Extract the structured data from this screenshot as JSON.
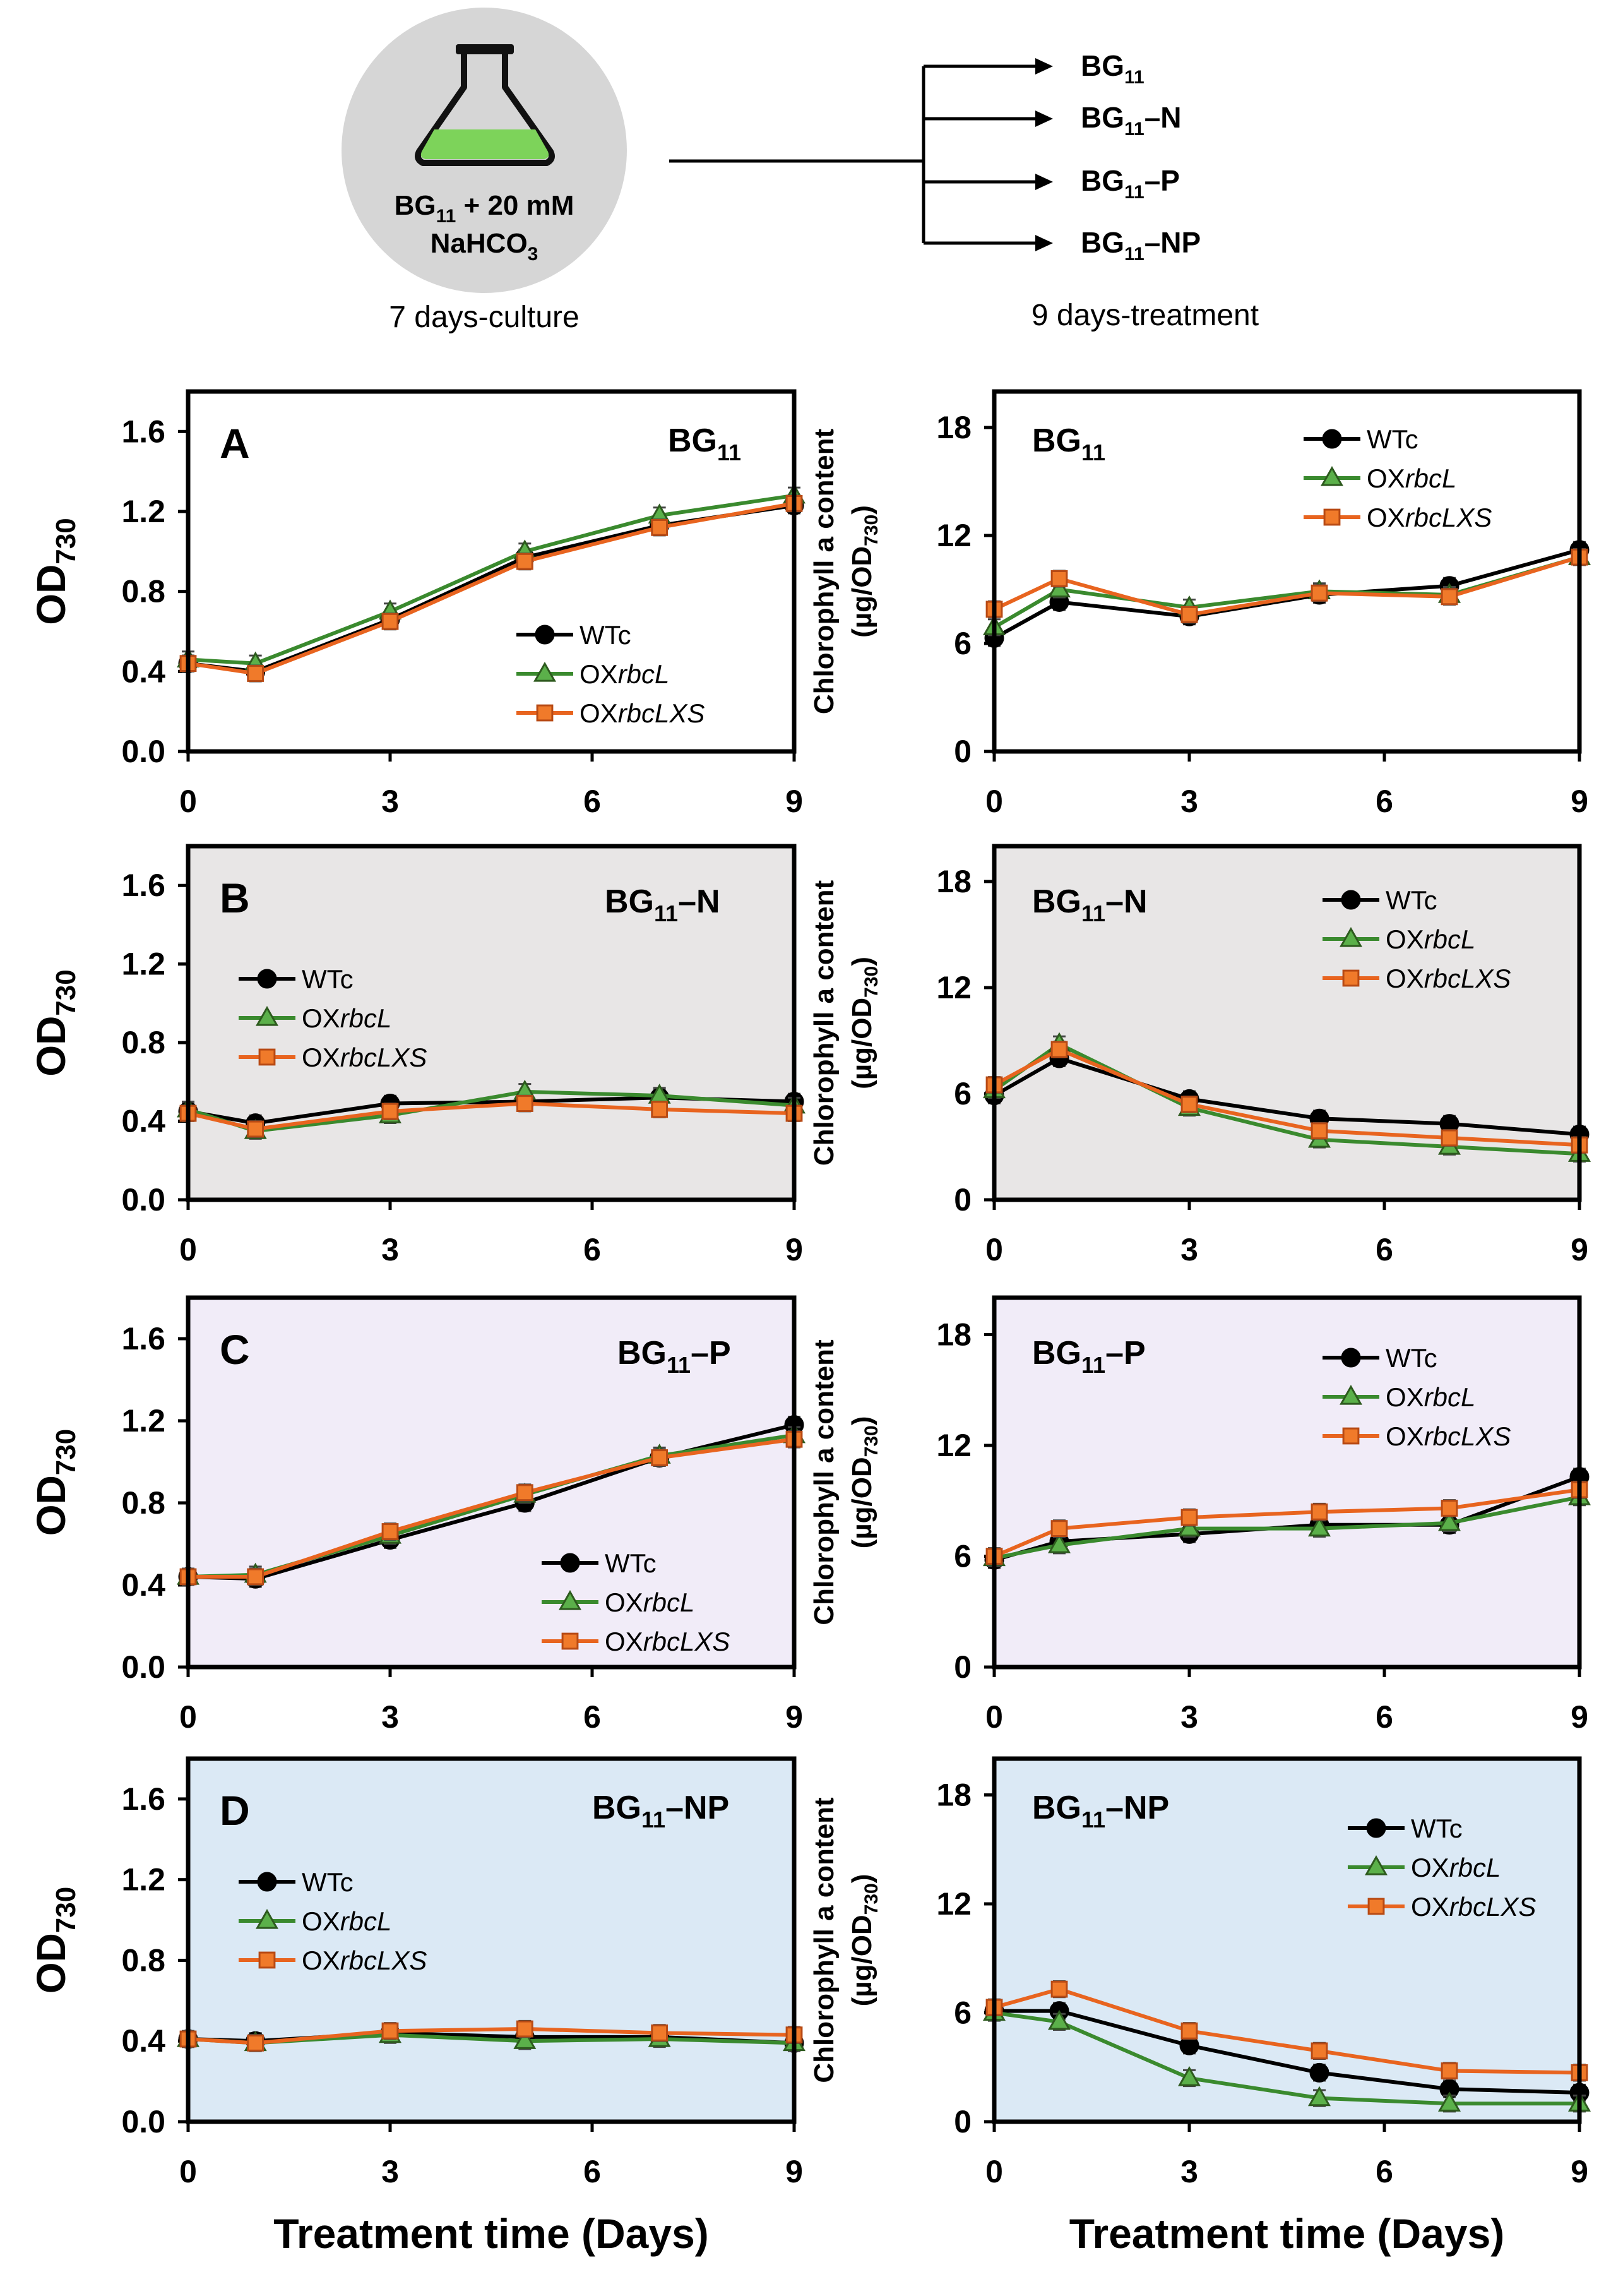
{
  "header": {
    "flask_label_line1": "BG",
    "flask_label_line1_sub": "11",
    "flask_label_line1_rest": " + 20 mM",
    "flask_label_line2": "NaHCO",
    "flask_label_line2_sub": "3",
    "culture_caption": "7 days-culture",
    "treatment_caption": "9 days-treatment",
    "treatments": [
      {
        "base": "BG",
        "sub": "11",
        "suffix": ""
      },
      {
        "base": "BG",
        "sub": "11",
        "suffix": "–N"
      },
      {
        "base": "BG",
        "sub": "11",
        "suffix": "–P"
      },
      {
        "base": "BG",
        "sub": "11",
        "suffix": "–NP"
      }
    ]
  },
  "colors": {
    "wt": "#000000",
    "rbcl": "#3a8a2e",
    "rbcl_fill": "#5bb04a",
    "rbclxs": "#e8641f",
    "rbclxs_fill": "#f07a2a",
    "panel_white": "#ffffff",
    "panel_gray": "#e8e6e6",
    "panel_purple": "#f1ecf8",
    "panel_blue": "#dbe9f5",
    "flask_circle": "#d6d6d6",
    "flask_liquid": "#7dd35a"
  },
  "legend_labels": {
    "wt": "WTc",
    "rbcl_prefix": "OX",
    "rbcl_italic": "rbcL",
    "rbclxs_prefix": "OX",
    "rbclxs_italic": "rbcLXS"
  },
  "axis_text": {
    "od_ylabel_main": "OD",
    "od_ylabel_sub": "730",
    "chl_ylabel_line1": "Chlorophyll a content",
    "chl_ylabel_line2_main": "(µg/OD",
    "chl_ylabel_line2_sub": "730",
    "chl_ylabel_line2_end": ")",
    "xlabel": "Treatment time (Days)"
  },
  "chart_data": [
    {
      "type": "line",
      "id": "od-bg11",
      "panel_letter": "A",
      "title_base": "BG",
      "title_sub": "11",
      "title_suffix": "",
      "ylabel": "OD730",
      "xlabel": "Treatment time (Days)",
      "xlim": [
        0,
        9
      ],
      "ylim": [
        0,
        1.8
      ],
      "xticks": [
        "0",
        "3",
        "6",
        "9"
      ],
      "yticks": [
        "0.0",
        "0.4",
        "0.8",
        "1.2",
        "1.6"
      ],
      "x": [
        0,
        1,
        3,
        5,
        7,
        9
      ],
      "series": [
        {
          "name": "WTc",
          "values": [
            0.44,
            0.4,
            0.66,
            0.97,
            1.13,
            1.23
          ]
        },
        {
          "name": "OXrbcL",
          "values": [
            0.46,
            0.44,
            0.7,
            1.0,
            1.18,
            1.28
          ]
        },
        {
          "name": "OXrbcLXS",
          "values": [
            0.44,
            0.39,
            0.65,
            0.95,
            1.12,
            1.24
          ]
        }
      ]
    },
    {
      "type": "line",
      "id": "chl-bg11",
      "panel_letter": "",
      "title_base": "BG",
      "title_sub": "11",
      "title_suffix": "",
      "ylabel": "Chlorophyll a content (ug/OD730)",
      "xlabel": "Treatment time (Days)",
      "xlim": [
        0,
        9
      ],
      "ylim": [
        0,
        20
      ],
      "xticks": [
        "0",
        "3",
        "6",
        "9"
      ],
      "yticks": [
        "0",
        "6",
        "12",
        "18"
      ],
      "x": [
        0,
        1,
        3,
        5,
        7,
        9
      ],
      "series": [
        {
          "name": "WTc",
          "values": [
            6.3,
            8.3,
            7.5,
            8.7,
            9.2,
            11.2
          ]
        },
        {
          "name": "OXrbcL",
          "values": [
            6.9,
            9.0,
            8.0,
            8.9,
            8.7,
            10.8
          ]
        },
        {
          "name": "OXrbcLXS",
          "values": [
            7.9,
            9.6,
            7.6,
            8.8,
            8.6,
            10.8
          ]
        }
      ]
    },
    {
      "type": "line",
      "id": "od-bg11-n",
      "panel_letter": "B",
      "title_base": "BG",
      "title_sub": "11",
      "title_suffix": "–N",
      "ylabel": "OD730",
      "xlabel": "Treatment time (Days)",
      "xlim": [
        0,
        9
      ],
      "ylim": [
        0,
        1.8
      ],
      "xticks": [
        "0",
        "3",
        "6",
        "9"
      ],
      "yticks": [
        "0.0",
        "0.4",
        "0.8",
        "1.2",
        "1.6"
      ],
      "x": [
        0,
        1,
        3,
        5,
        7,
        9
      ],
      "series": [
        {
          "name": "WTc",
          "values": [
            0.45,
            0.39,
            0.49,
            0.5,
            0.52,
            0.5
          ]
        },
        {
          "name": "OXrbcL",
          "values": [
            0.46,
            0.35,
            0.43,
            0.55,
            0.53,
            0.48
          ]
        },
        {
          "name": "OXrbcLXS",
          "values": [
            0.44,
            0.36,
            0.45,
            0.49,
            0.46,
            0.44
          ]
        }
      ]
    },
    {
      "type": "line",
      "id": "chl-bg11-n",
      "panel_letter": "",
      "title_base": "BG",
      "title_sub": "11",
      "title_suffix": "–N",
      "ylabel": "Chlorophyll a content (ug/OD730)",
      "xlabel": "Treatment time (Days)",
      "xlim": [
        0,
        9
      ],
      "ylim": [
        0,
        20
      ],
      "xticks": [
        "0",
        "3",
        "6",
        "9"
      ],
      "yticks": [
        "0",
        "6",
        "12",
        "18"
      ],
      "x": [
        0,
        1,
        3,
        5,
        7,
        9
      ],
      "series": [
        {
          "name": "WTc",
          "values": [
            5.9,
            8.0,
            5.7,
            4.6,
            4.3,
            3.7
          ]
        },
        {
          "name": "OXrbcL",
          "values": [
            6.2,
            8.8,
            5.2,
            3.4,
            3.0,
            2.6
          ]
        },
        {
          "name": "OXrbcLXS",
          "values": [
            6.5,
            8.5,
            5.4,
            3.9,
            3.5,
            3.1
          ]
        }
      ]
    },
    {
      "type": "line",
      "id": "od-bg11-p",
      "panel_letter": "C",
      "title_base": "BG",
      "title_sub": "11",
      "title_suffix": "–P",
      "ylabel": "OD730",
      "xlabel": "Treatment time (Days)",
      "xlim": [
        0,
        9
      ],
      "ylim": [
        0,
        1.8
      ],
      "xticks": [
        "0",
        "3",
        "6",
        "9"
      ],
      "yticks": [
        "0.0",
        "0.4",
        "0.8",
        "1.2",
        "1.6"
      ],
      "x": [
        0,
        1,
        3,
        5,
        7,
        9
      ],
      "series": [
        {
          "name": "WTc",
          "values": [
            0.44,
            0.43,
            0.62,
            0.8,
            1.02,
            1.18
          ]
        },
        {
          "name": "OXrbcL",
          "values": [
            0.44,
            0.45,
            0.64,
            0.84,
            1.03,
            1.13
          ]
        },
        {
          "name": "OXrbcLXS",
          "values": [
            0.44,
            0.44,
            0.66,
            0.85,
            1.02,
            1.11
          ]
        }
      ]
    },
    {
      "type": "line",
      "id": "chl-bg11-p",
      "panel_letter": "",
      "title_base": "BG",
      "title_sub": "11",
      "title_suffix": "–P",
      "ylabel": "Chlorophyll a content (ug/OD730)",
      "xlabel": "Treatment time (Days)",
      "xlim": [
        0,
        9
      ],
      "ylim": [
        0,
        20
      ],
      "xticks": [
        "0",
        "3",
        "6",
        "9"
      ],
      "yticks": [
        "0",
        "6",
        "12",
        "18"
      ],
      "x": [
        0,
        1,
        3,
        5,
        7,
        9
      ],
      "series": [
        {
          "name": "WTc",
          "values": [
            5.8,
            6.8,
            7.2,
            7.7,
            7.7,
            10.3
          ]
        },
        {
          "name": "OXrbcL",
          "values": [
            5.9,
            6.6,
            7.5,
            7.5,
            7.8,
            9.2
          ]
        },
        {
          "name": "OXrbcLXS",
          "values": [
            6.0,
            7.5,
            8.1,
            8.4,
            8.6,
            9.6
          ]
        }
      ]
    },
    {
      "type": "line",
      "id": "od-bg11-np",
      "panel_letter": "D",
      "title_base": "BG",
      "title_sub": "11",
      "title_suffix": "–NP",
      "ylabel": "OD730",
      "xlabel": "Treatment time (Days)",
      "xlim": [
        0,
        9
      ],
      "ylim": [
        0,
        1.8
      ],
      "xticks": [
        "0",
        "3",
        "6",
        "9"
      ],
      "yticks": [
        "0.0",
        "0.4",
        "0.8",
        "1.2",
        "1.6"
      ],
      "x": [
        0,
        1,
        3,
        5,
        7,
        9
      ],
      "series": [
        {
          "name": "WTc",
          "values": [
            0.41,
            0.4,
            0.44,
            0.42,
            0.42,
            0.39
          ]
        },
        {
          "name": "OXrbcL",
          "values": [
            0.41,
            0.39,
            0.43,
            0.4,
            0.41,
            0.39
          ]
        },
        {
          "name": "OXrbcLXS",
          "values": [
            0.41,
            0.39,
            0.45,
            0.46,
            0.44,
            0.43
          ]
        }
      ]
    },
    {
      "type": "line",
      "id": "chl-bg11-np",
      "panel_letter": "",
      "title_base": "BG",
      "title_sub": "11",
      "title_suffix": "–NP",
      "ylabel": "Chlorophyll a content (ug/OD730)",
      "xlabel": "Treatment time (Days)",
      "xlim": [
        0,
        9
      ],
      "ylim": [
        0,
        20
      ],
      "xticks": [
        "0",
        "3",
        "6",
        "9"
      ],
      "yticks": [
        "0",
        "6",
        "12",
        "18"
      ],
      "x": [
        0,
        1,
        3,
        5,
        7,
        9
      ],
      "series": [
        {
          "name": "WTc",
          "values": [
            6.1,
            6.1,
            4.2,
            2.7,
            1.8,
            1.6
          ]
        },
        {
          "name": "OXrbcL",
          "values": [
            6.0,
            5.5,
            2.4,
            1.3,
            1.0,
            1.0
          ]
        },
        {
          "name": "OXrbcLXS",
          "values": [
            6.3,
            7.3,
            5.0,
            3.9,
            2.8,
            2.7
          ]
        }
      ]
    }
  ]
}
